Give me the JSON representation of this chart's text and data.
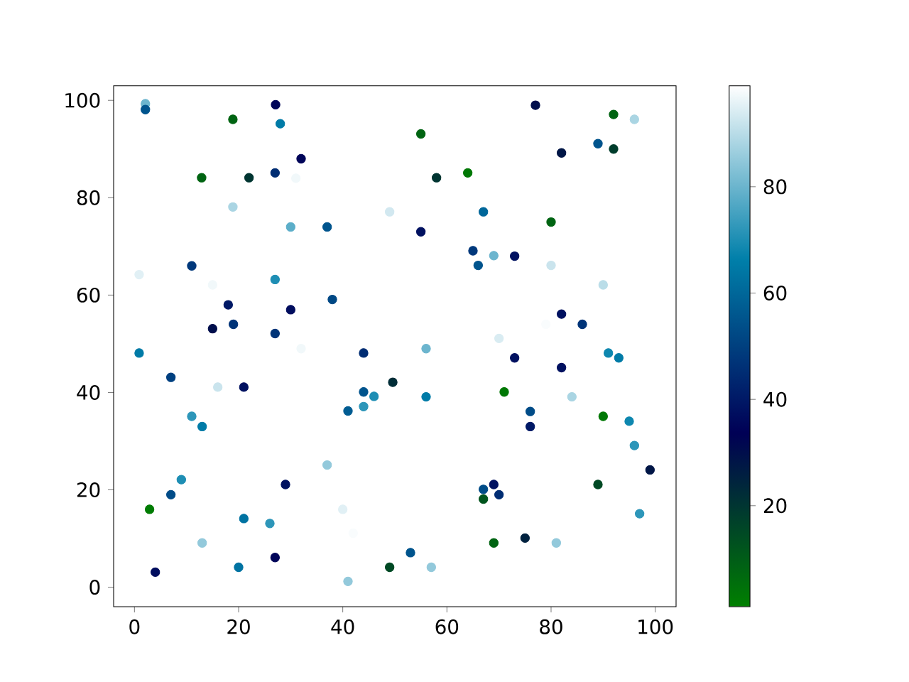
{
  "chart_data": {
    "type": "scatter",
    "marker": "circle",
    "xlim": [
      -4,
      104
    ],
    "ylim": [
      -4,
      103
    ],
    "xticks": [
      0,
      20,
      40,
      60,
      80,
      100
    ],
    "yticks": [
      0,
      20,
      40,
      60,
      80,
      100
    ],
    "clim": [
      1,
      99
    ],
    "cticks": [
      20,
      40,
      60,
      80
    ],
    "x": [
      2.1,
      2.1,
      27.1,
      18.9,
      28,
      32,
      12.9,
      22,
      27,
      31,
      18.9,
      49,
      30,
      37,
      0.9,
      11,
      15,
      27,
      38,
      18,
      30,
      15,
      19,
      27,
      32,
      77,
      92,
      96,
      55,
      89,
      92,
      82,
      58,
      64,
      67,
      55,
      80,
      65,
      69,
      73,
      66,
      80,
      90,
      82,
      86,
      79,
      70,
      56,
      0.9,
      44,
      7,
      16,
      21,
      49.6,
      44,
      46,
      44,
      41,
      11,
      13,
      37,
      9,
      7,
      29,
      2.9,
      40,
      21,
      26,
      42,
      13,
      20,
      27,
      4,
      49,
      41,
      73,
      82,
      91,
      93,
      56,
      71,
      84,
      76,
      76,
      90,
      95,
      96,
      99,
      69,
      67,
      70,
      67,
      89,
      97,
      69,
      75,
      81,
      53,
      57
    ],
    "values": [
      99.3,
      98.1,
      99.1,
      96.1,
      95.2,
      88,
      84.1,
      84.1,
      85.1,
      84,
      78.1,
      77.1,
      74,
      74,
      64.2,
      66,
      62.1,
      63.2,
      59.1,
      58,
      57,
      53.1,
      54,
      52.1,
      49,
      99,
      97.1,
      96.1,
      93.1,
      91.1,
      90,
      89.2,
      84.1,
      85.1,
      77.1,
      73,
      75,
      69.1,
      68.1,
      68,
      66.1,
      66.1,
      62.1,
      56.1,
      54,
      54,
      51.1,
      49,
      48.1,
      48.1,
      43.1,
      41.1,
      41.1,
      42.1,
      40.1,
      39.2,
      37.1,
      36.2,
      35.1,
      33,
      25.1,
      22.1,
      19,
      21.1,
      16,
      16,
      14.1,
      13.1,
      11.1,
      9.1,
      4.1,
      6.1,
      3.1,
      4.1,
      1.2,
      47.1,
      45.1,
      48.1,
      47.1,
      39.1,
      40.1,
      39.1,
      36.1,
      33,
      35.1,
      34.1,
      29.1,
      24.1,
      21.1,
      20.1,
      19,
      18.1,
      21.1,
      15.1,
      9.1,
      10.1,
      9.1,
      7.1,
      4.1
    ],
    "cvalues": [
      80,
      55,
      35,
      8,
      65,
      35,
      8,
      20,
      45,
      97,
      88,
      93,
      78,
      55,
      95,
      48,
      97,
      70,
      52,
      40,
      37,
      30,
      47,
      47,
      97,
      30,
      8,
      88,
      8,
      55,
      18,
      28,
      20,
      3,
      60,
      38,
      8,
      48,
      80,
      38,
      55,
      92,
      90,
      38,
      47,
      98,
      94,
      80,
      65,
      45,
      50,
      92,
      38,
      22,
      55,
      70,
      72,
      57,
      72,
      65,
      85,
      70,
      53,
      38,
      2,
      95,
      63,
      72,
      98,
      85,
      63,
      35,
      37,
      15,
      85,
      38,
      38,
      68,
      65,
      65,
      3,
      88,
      53,
      40,
      3,
      68,
      72,
      28,
      38,
      53,
      45,
      12,
      15,
      72,
      8,
      25,
      85,
      55,
      85
    ]
  }
}
